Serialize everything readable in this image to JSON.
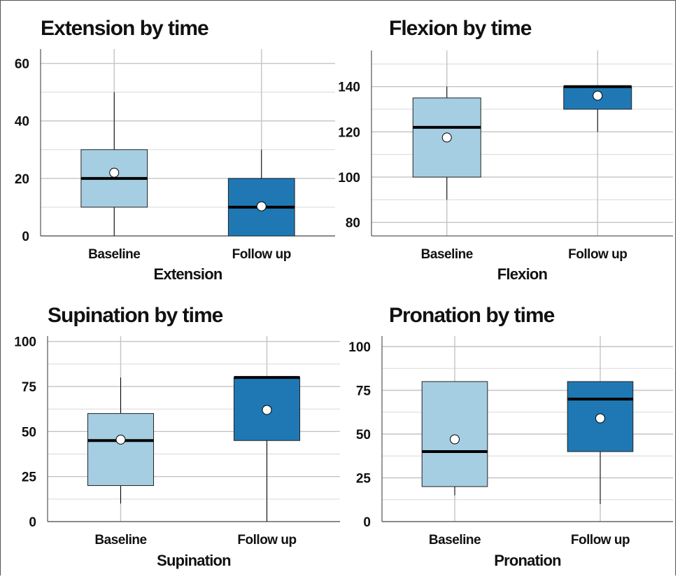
{
  "chart_data": [
    {
      "type": "box",
      "title": "Extension by time",
      "xlabel": "Extension",
      "ylabel": "",
      "categories": [
        "Baseline",
        "Follow up"
      ],
      "ylim": [
        0,
        65
      ],
      "yticks": [
        0,
        20,
        40,
        60
      ],
      "grid": true,
      "series": [
        {
          "category": "Baseline",
          "min": 0,
          "q1": 10,
          "median": 20,
          "q3": 30,
          "max": 50,
          "mean": 22,
          "color": "#a6cee3"
        },
        {
          "category": "Follow up",
          "min": 0,
          "q1": 0,
          "median": 10,
          "q3": 20,
          "max": 30,
          "mean": 10.3,
          "color": "#1f78b4"
        }
      ]
    },
    {
      "type": "box",
      "title": "Flexion by time",
      "xlabel": "Flexion",
      "ylabel": "",
      "categories": [
        "Baseline",
        "Follow up"
      ],
      "ylim": [
        74,
        156
      ],
      "yticks": [
        80,
        100,
        120,
        140
      ],
      "grid": true,
      "series": [
        {
          "category": "Baseline",
          "min": 90,
          "q1": 100,
          "median": 122,
          "q3": 135,
          "max": 140,
          "mean": 117.5,
          "color": "#a6cee3"
        },
        {
          "category": "Follow up",
          "min": 120,
          "q1": 130,
          "median": 140,
          "q3": 140,
          "max": 140,
          "mean": 136,
          "color": "#1f78b4"
        }
      ]
    },
    {
      "type": "box",
      "title": "Supination by time",
      "xlabel": "Supination",
      "ylabel": "",
      "categories": [
        "Baseline",
        "Follow up"
      ],
      "ylim": [
        0,
        103
      ],
      "yticks": [
        0,
        25,
        50,
        75,
        100
      ],
      "grid": true,
      "series": [
        {
          "category": "Baseline",
          "min": 10,
          "q1": 20,
          "median": 45,
          "q3": 60,
          "max": 80,
          "mean": 45.5,
          "color": "#a6cee3"
        },
        {
          "category": "Follow up",
          "min": 0,
          "q1": 45,
          "median": 80,
          "q3": 80,
          "max": 80,
          "mean": 62,
          "color": "#1f78b4"
        }
      ]
    },
    {
      "type": "box",
      "title": "Pronation by time",
      "xlabel": "Pronation",
      "ylabel": "",
      "categories": [
        "Baseline",
        "Follow up"
      ],
      "ylim": [
        0,
        106
      ],
      "yticks": [
        0,
        25,
        50,
        75,
        100
      ],
      "grid": true,
      "series": [
        {
          "category": "Baseline",
          "min": 15,
          "q1": 20,
          "median": 40,
          "q3": 80,
          "max": 80,
          "mean": 47,
          "color": "#a6cee3"
        },
        {
          "category": "Follow up",
          "min": 10,
          "q1": 40,
          "median": 70,
          "q3": 80,
          "max": 80,
          "mean": 59,
          "color": "#1f78b4"
        }
      ]
    }
  ]
}
